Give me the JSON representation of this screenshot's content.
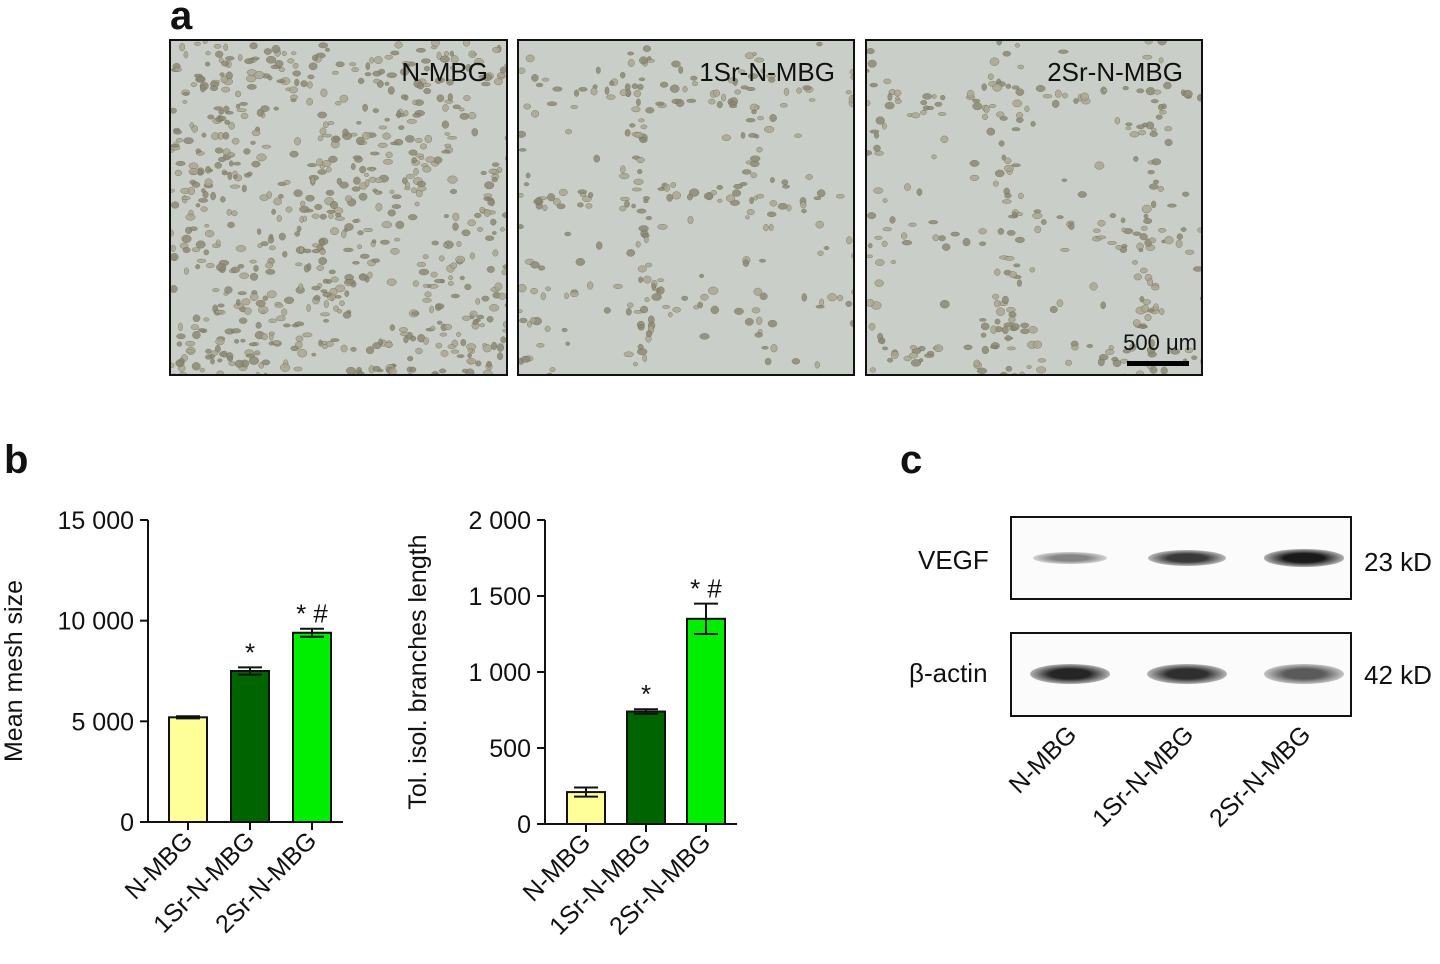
{
  "panels": {
    "a": "a",
    "b": "b",
    "c": "c"
  },
  "micrographs": [
    {
      "label": "N-MBG"
    },
    {
      "label": "1Sr-N-MBG"
    },
    {
      "label": "2Sr-N-MBG"
    }
  ],
  "scale_bar": "500 μm",
  "chart_data": [
    {
      "type": "bar",
      "ylabel": "Mean mesh size",
      "categories": [
        "N-MBG",
        "1Sr-N-MBG",
        "2Sr-N-MBG"
      ],
      "values": [
        5200,
        7500,
        9400
      ],
      "errors": [
        50,
        180,
        200
      ],
      "annotations": [
        "",
        "*",
        "* #"
      ],
      "ylim": [
        0,
        15000
      ],
      "yticks": [
        0,
        5000,
        10000,
        15000
      ],
      "ytick_labels": [
        "0",
        "5 000",
        "10 000",
        "15 000"
      ],
      "colors": [
        "#ffff99",
        "#006400",
        "#00ee00"
      ]
    },
    {
      "type": "bar",
      "ylabel": "Tol. isol. branches length",
      "categories": [
        "N-MBG",
        "1Sr-N-MBG",
        "2Sr-N-MBG"
      ],
      "values": [
        210,
        740,
        1350
      ],
      "errors": [
        30,
        15,
        100
      ],
      "annotations": [
        "",
        "*",
        "* #"
      ],
      "ylim": [
        0,
        2000
      ],
      "yticks": [
        0,
        500,
        1000,
        1500,
        2000
      ],
      "ytick_labels": [
        "0",
        "500",
        "1 000",
        "1 500",
        "2 000"
      ],
      "colors": [
        "#ffff99",
        "#006400",
        "#00ee00"
      ]
    }
  ],
  "western_blot": {
    "rows": [
      {
        "protein": "VEGF",
        "size": "23 kD",
        "intensities": [
          0.45,
          0.8,
          0.95
        ]
      },
      {
        "protein": "β-actin",
        "size": "42 kD",
        "intensities": [
          0.9,
          0.85,
          0.65
        ]
      }
    ],
    "lanes": [
      "N-MBG",
      "1Sr-N-MBG",
      "2Sr-N-MBG"
    ]
  }
}
